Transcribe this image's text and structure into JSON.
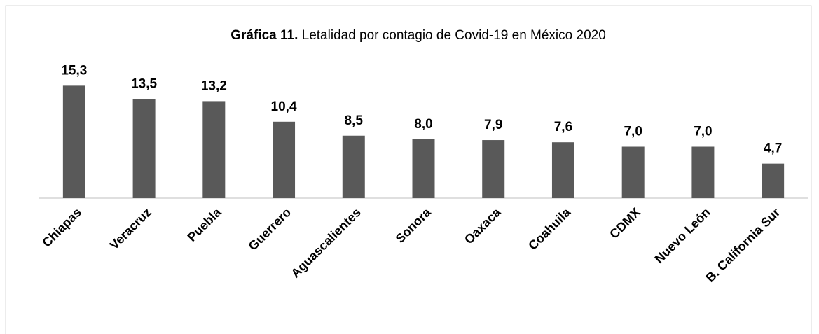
{
  "chart_data": {
    "type": "bar",
    "title_label": "Gráfica 11.",
    "title": "Letalidad por  contagio de Covid-19 en México 2020",
    "categories": [
      "Chiapas",
      "Veracruz",
      "Puebla",
      "Guerrero",
      "Aguascalientes",
      "Sonora",
      "Oaxaca",
      "Coahuila",
      "CDMX",
      "Nuevo León",
      "B. California Sur"
    ],
    "values": [
      15.3,
      13.5,
      13.2,
      10.4,
      8.5,
      8.0,
      7.9,
      7.6,
      7.0,
      7.0,
      4.7
    ],
    "value_labels": [
      "15,3",
      "13,5",
      "13,2",
      "10,4",
      "8,5",
      "8,0",
      "7,9",
      "7,6",
      "7,0",
      "7,0",
      "4,7"
    ],
    "color": "#595959",
    "ylim": [
      0,
      18
    ]
  }
}
